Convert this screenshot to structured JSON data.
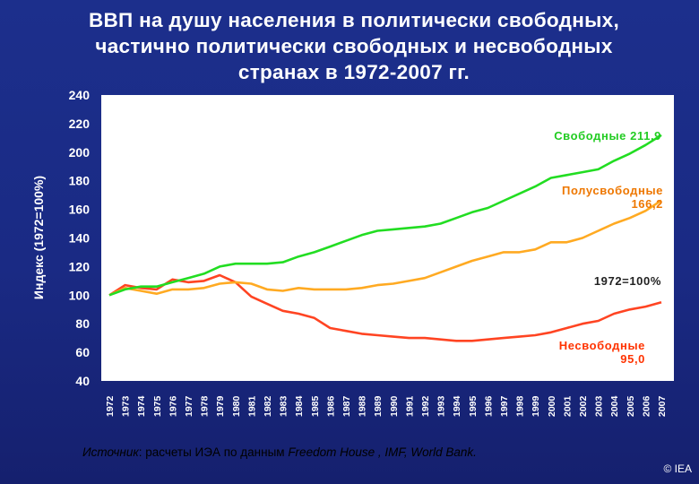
{
  "title_lines": [
    "ВВП на душу населения в политически свободных,",
    "частично политически свободных и несвободных",
    "странах в 1972-2007 гг."
  ],
  "source": {
    "prefix": "Источник",
    "text": ": расчеты ИЭА по данным ",
    "sources": "Freedom House , IMF, World Bank."
  },
  "copyright": "© IEA",
  "colors": {
    "free": "#22dd22",
    "partly": "#ffaa22",
    "notfree": "#ff4422",
    "baseline": "#ffffff",
    "plot_bg": "#ffffff",
    "label_free": "#22cc22",
    "label_partly": "#ee7700",
    "label_notfree": "#ff3300",
    "label_baseline": "#222222"
  },
  "chart_data": {
    "type": "line",
    "ylabel": "Индекс (1972=100%)",
    "ylim": [
      40,
      240
    ],
    "yticks": [
      40,
      60,
      80,
      100,
      120,
      140,
      160,
      180,
      200,
      220,
      240
    ],
    "x": [
      1972,
      1973,
      1974,
      1975,
      1976,
      1977,
      1978,
      1979,
      1980,
      1981,
      1982,
      1983,
      1984,
      1985,
      1986,
      1987,
      1988,
      1989,
      1990,
      1991,
      1992,
      1993,
      1994,
      1995,
      1996,
      1997,
      1998,
      1999,
      2000,
      2001,
      2002,
      2003,
      2004,
      2005,
      2006,
      2007
    ],
    "series": [
      {
        "key": "free",
        "values": [
          100,
          104,
          106,
          106,
          109,
          112,
          115,
          120,
          122,
          122,
          122,
          123,
          127,
          130,
          134,
          138,
          142,
          145,
          146,
          147,
          148,
          150,
          154,
          158,
          161,
          166,
          171,
          176,
          182,
          184,
          186,
          188,
          194,
          199,
          205,
          211.9
        ]
      },
      {
        "key": "partly",
        "values": [
          100,
          105,
          103,
          101,
          104,
          104,
          105,
          108,
          109,
          108,
          104,
          103,
          105,
          104,
          104,
          104,
          105,
          107,
          108,
          110,
          112,
          116,
          120,
          124,
          127,
          130,
          130,
          132,
          137,
          137,
          140,
          145,
          150,
          154,
          159,
          166.2
        ]
      },
      {
        "key": "notfree",
        "values": [
          100,
          107,
          105,
          104,
          111,
          109,
          110,
          114,
          109,
          99,
          94,
          89,
          87,
          84,
          77,
          75,
          73,
          72,
          71,
          70,
          70,
          69,
          68,
          68,
          69,
          70,
          71,
          72,
          74,
          77,
          80,
          82,
          87,
          90,
          92,
          95.0
        ]
      },
      {
        "key": "baseline",
        "values": [
          100,
          100,
          100,
          100,
          100,
          100,
          100,
          100,
          100,
          100,
          100,
          100,
          100,
          100,
          100,
          100,
          100,
          100,
          100,
          100,
          100,
          100,
          100,
          100,
          100,
          100,
          100,
          100,
          100,
          100,
          100,
          100,
          100,
          100,
          100,
          100
        ]
      }
    ],
    "annotations": {
      "free": [
        "Свободные 211,9"
      ],
      "partly": [
        "Полусвободные",
        "166,2"
      ],
      "baseline": [
        "1972=100%"
      ],
      "notfree": [
        "Несвободные",
        "95,0"
      ]
    }
  }
}
